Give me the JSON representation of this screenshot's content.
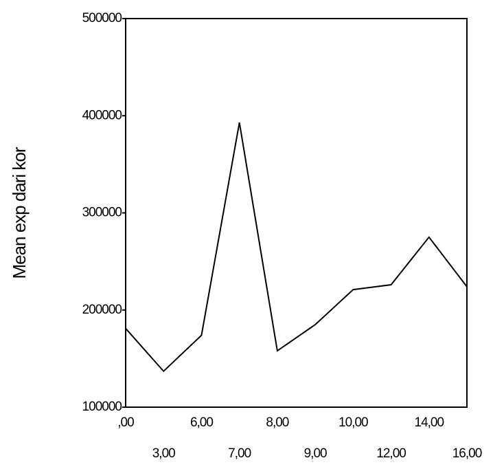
{
  "chart_data": {
    "type": "line",
    "y_label": "Mean exp dari kor",
    "categories": [
      ",00",
      "3,00",
      "6,00",
      "7,00",
      "8,00",
      "9,00",
      "10,00",
      "12,00",
      "14,00",
      "16,00"
    ],
    "values": [
      181000,
      137000,
      174000,
      393000,
      158000,
      185000,
      221000,
      226000,
      275000,
      224000
    ],
    "color": "#000000",
    "ylim": [
      100000,
      500000
    ],
    "yticks": [
      100000,
      200000,
      300000,
      400000,
      500000
    ]
  }
}
